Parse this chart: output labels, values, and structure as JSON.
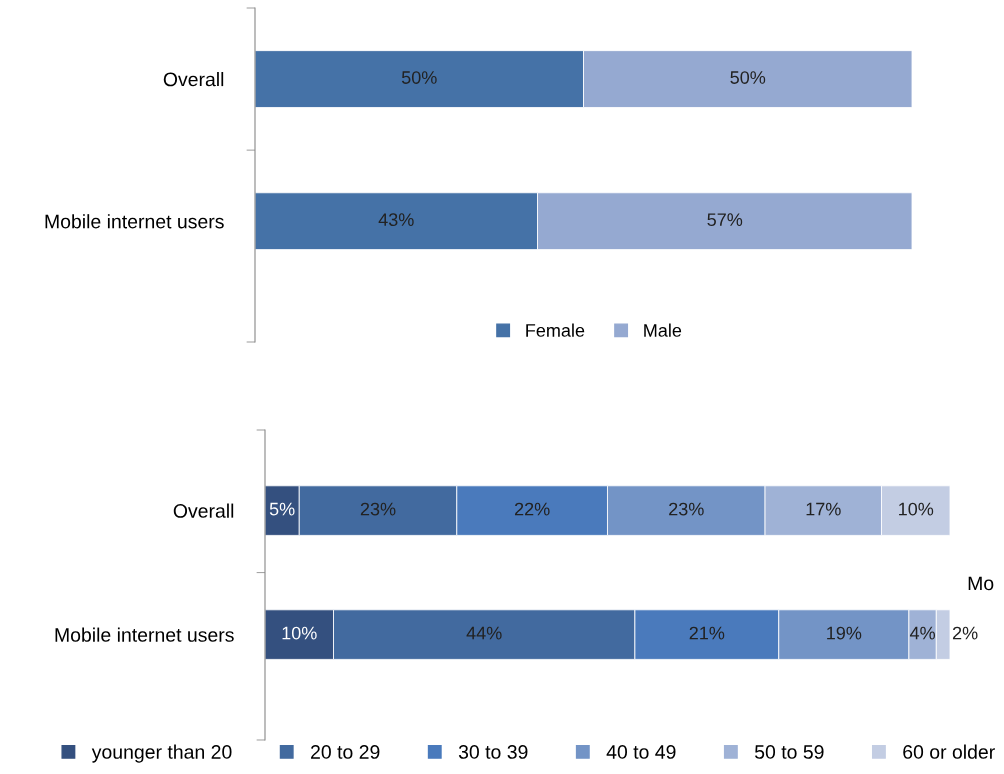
{
  "chart_data": [
    {
      "type": "bar",
      "orientation": "horizontal",
      "stacked": true,
      "categories": [
        "Overall",
        "Mobile internet users"
      ],
      "legend": "bottom",
      "grid": false,
      "series": [
        {
          "name": "Female",
          "color": "#4572a7",
          "values": [
            50,
            43
          ],
          "value_labels": [
            "50%",
            "43%"
          ]
        },
        {
          "name": "Male",
          "color": "#95a9d1",
          "values": [
            50,
            57
          ],
          "value_labels": [
            "50%",
            "57%"
          ]
        }
      ]
    },
    {
      "type": "bar",
      "orientation": "horizontal",
      "stacked": true,
      "categories": [
        "Overall",
        "Mobile internet users"
      ],
      "legend": "bottom",
      "grid": false,
      "annotations": [
        "Mo"
      ],
      "series": [
        {
          "name": "younger than 20",
          "color": "#34507f",
          "values": [
            5,
            10
          ],
          "value_labels": [
            "5%",
            "10%"
          ]
        },
        {
          "name": "20 to 29",
          "color": "#426a9f",
          "values": [
            23,
            44
          ],
          "value_labels": [
            "23%",
            "44%"
          ]
        },
        {
          "name": "30 to 39",
          "color": "#4a7abc",
          "values": [
            22,
            21
          ],
          "value_labels": [
            "22%",
            "21%"
          ]
        },
        {
          "name": "40 to 49",
          "color": "#7394c6",
          "values": [
            23,
            19
          ],
          "value_labels": [
            "23%",
            "19%"
          ]
        },
        {
          "name": "50 to 59",
          "color": "#9fb2d6",
          "values": [
            17,
            4
          ],
          "value_labels": [
            "17%",
            "4%"
          ]
        },
        {
          "name": "60 or older",
          "color": "#c3cde3",
          "values": [
            10,
            2
          ],
          "value_labels": [
            "10%",
            "2%"
          ]
        }
      ]
    }
  ]
}
